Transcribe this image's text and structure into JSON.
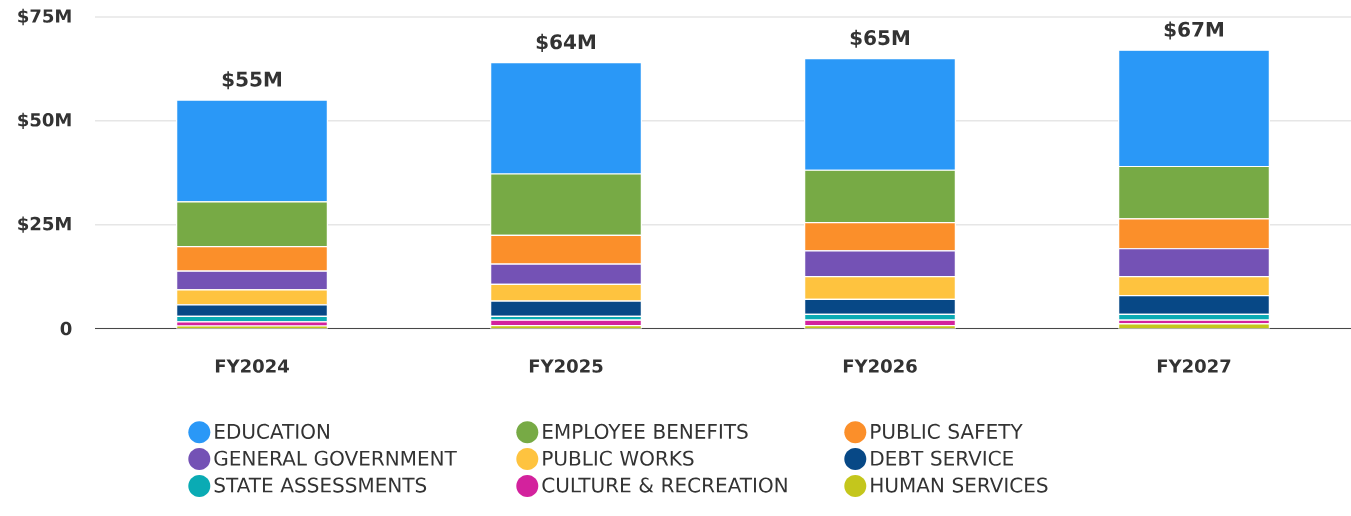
{
  "chart_data": {
    "type": "bar",
    "stacked": true,
    "categories": [
      "FY2024",
      "FY2025",
      "FY2026",
      "FY2027"
    ],
    "series": [
      {
        "name": "HUMAN SERVICES",
        "color": "#c4c61c",
        "values": [
          0.6,
          0.7,
          0.7,
          1.1
        ]
      },
      {
        "name": "CULTURE & RECREATION",
        "color": "#d3229d",
        "values": [
          1.0,
          1.3,
          1.3,
          0.9
        ]
      },
      {
        "name": "STATE ASSESSMENTS",
        "color": "#0aabb4",
        "values": [
          1.3,
          0.9,
          1.4,
          1.4
        ]
      },
      {
        "name": "DEBT SERVICE",
        "color": "#074886",
        "values": [
          2.8,
          3.7,
          3.6,
          4.5
        ]
      },
      {
        "name": "PUBLIC WORKS",
        "color": "#fec33f",
        "values": [
          3.6,
          4.0,
          5.5,
          4.6
        ]
      },
      {
        "name": "GENERAL GOVERNMENT",
        "color": "#7452b5",
        "values": [
          4.5,
          4.9,
          6.2,
          6.7
        ]
      },
      {
        "name": "PUBLIC SAFETY",
        "color": "#fb8f2a",
        "values": [
          5.9,
          6.9,
          6.8,
          7.2
        ]
      },
      {
        "name": "EMPLOYEE BENEFITS",
        "color": "#77aa45",
        "values": [
          10.8,
          14.8,
          12.6,
          12.6
        ]
      },
      {
        "name": "EDUCATION",
        "color": "#2a98f7",
        "values": [
          24.5,
          26.8,
          26.9,
          28.0
        ]
      }
    ],
    "totals": [
      "$55M",
      "$64M",
      "$65M",
      "$67M"
    ],
    "ylim": [
      0,
      75
    ],
    "yticks": [
      {
        "value": 0,
        "label": "0"
      },
      {
        "value": 25,
        "label": "$25M"
      },
      {
        "value": 50,
        "label": "$50M"
      },
      {
        "value": 75,
        "label": "$75M"
      }
    ],
    "grid": "y",
    "legend": "bottom"
  }
}
